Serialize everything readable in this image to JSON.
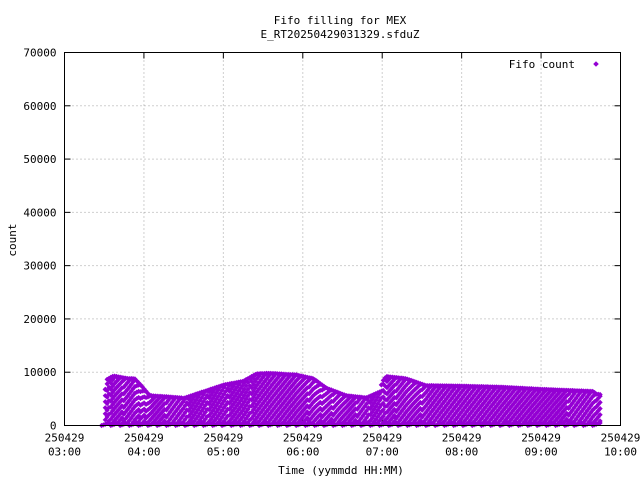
{
  "chart_data": {
    "type": "scatter",
    "title": "Fifo filling for MEX",
    "subtitle": "E_RT20250429031329.sfduZ",
    "xlabel": "Time (yymmdd HH:MM)",
    "ylabel": "count",
    "ylim": [
      0,
      70000
    ],
    "xlim": [
      "250429 03:00",
      "250429 10:00"
    ],
    "yticks": [
      "0",
      "10000",
      "20000",
      "30000",
      "40000",
      "50000",
      "60000",
      "70000"
    ],
    "xticks": [
      {
        "date": "250429",
        "time": "03:00"
      },
      {
        "date": "250429",
        "time": "04:00"
      },
      {
        "date": "250429",
        "time": "05:00"
      },
      {
        "date": "250429",
        "time": "06:00"
      },
      {
        "date": "250429",
        "time": "07:00"
      },
      {
        "date": "250429",
        "time": "08:00"
      },
      {
        "date": "250429",
        "time": "09:00"
      },
      {
        "date": "250429",
        "time": "10:00"
      }
    ],
    "grid": true,
    "legend_position": "top-right",
    "series": [
      {
        "name": "Fifo count",
        "color": "#9400d3",
        "marker": "diamond",
        "envelope": {
          "x": [
            "03:28",
            "03:29",
            "03:30",
            "03:31",
            "03:37",
            "03:48",
            "03:53",
            "03:58",
            "04:03",
            "04:05",
            "04:28",
            "04:30",
            "05:00",
            "05:15",
            "05:25",
            "05:35",
            "05:55",
            "06:08",
            "06:18",
            "06:33",
            "06:48",
            "06:58",
            "07:00",
            "07:03",
            "07:18",
            "07:33",
            "08:00",
            "08:30",
            "09:00",
            "09:30",
            "09:40",
            "09:41",
            "09:42",
            "09:45"
          ],
          "y": [
            0,
            0,
            0,
            8500,
            9300,
            8800,
            8800,
            7500,
            6000,
            5600,
            5200,
            5100,
            7600,
            8300,
            9700,
            9800,
            9500,
            8800,
            7000,
            5600,
            5200,
            6300,
            8200,
            9200,
            8800,
            7500,
            7400,
            7200,
            6800,
            6500,
            6400,
            5900,
            5900,
            5800
          ]
        }
      }
    ]
  }
}
